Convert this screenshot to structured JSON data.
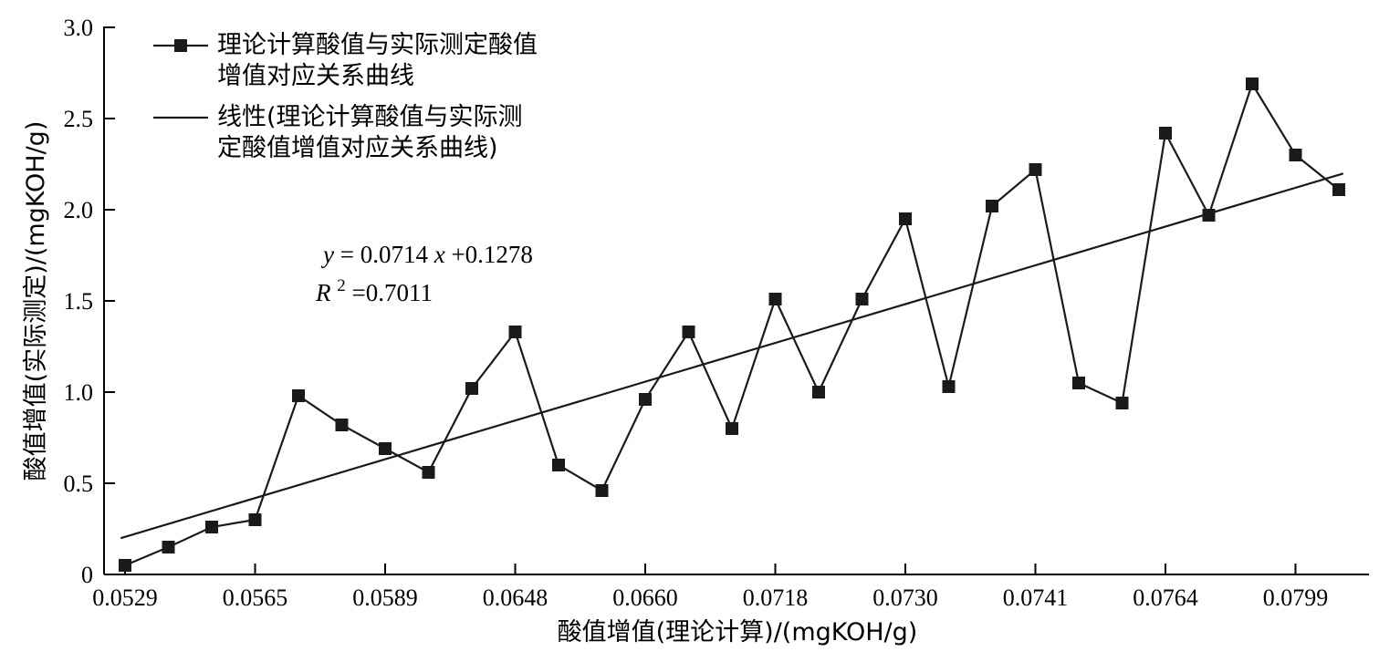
{
  "chart_data": {
    "type": "line",
    "xlabel": "酸值增值(理论计算)/(mgKOH/g)",
    "ylabel": "酸值增值(实际测定)/(mgKOH/g)",
    "ylim": [
      0,
      3.0
    ],
    "y_ticks": [
      "0",
      "0.5",
      "1.0",
      "1.5",
      "2.0",
      "2.5",
      "3.0"
    ],
    "x_tick_labels": [
      "0.0529",
      "0.0565",
      "0.0589",
      "0.0648",
      "0.0660",
      "0.0718",
      "0.0730",
      "0.0741",
      "0.0764",
      "0.0799"
    ],
    "series": [
      {
        "name": "理论计算酸值与实际测定酸值增值对应关系曲线",
        "marker": "square",
        "values": [
          0.05,
          0.15,
          0.26,
          0.3,
          0.98,
          0.82,
          0.69,
          0.56,
          1.02,
          1.33,
          0.6,
          0.46,
          0.96,
          1.33,
          0.8,
          1.51,
          1.0,
          1.51,
          1.95,
          1.03,
          2.02,
          2.22,
          1.05,
          0.94,
          2.42,
          1.97,
          2.69,
          2.3,
          2.11
        ]
      }
    ],
    "trendline": {
      "name": "线性(理论计算酸值与实际测定酸值增值对应关系曲线)",
      "equation": "y = 0.0714x + 0.1278",
      "r2": "R² = 0.7011",
      "slope": 0.0714,
      "intercept": 0.1278
    },
    "legend_position": "top-left",
    "grid": false
  },
  "legend": {
    "series_line1": "理论计算酸值与实际测定酸值",
    "series_line2": "增值对应关系曲线",
    "trend_line1": "线性(理论计算酸值与实际测",
    "trend_line2": "定酸值增值对应关系曲线)"
  },
  "equation": {
    "eq_y": "y",
    "eq_rest": "= 0.0714",
    "eq_x": "x",
    "eq_tail": "+0.1278",
    "r_letter": "R",
    "r_sup": "2",
    "r_value": "=0.7011"
  }
}
